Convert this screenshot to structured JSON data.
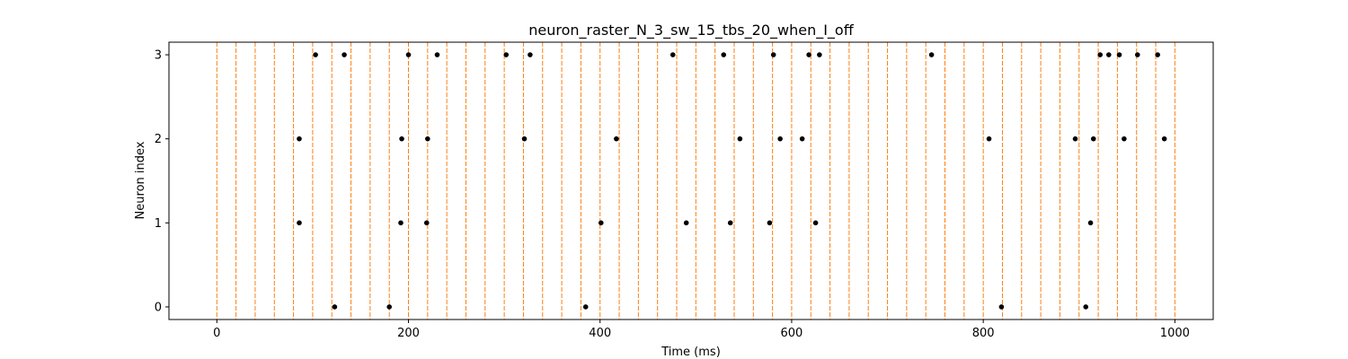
{
  "chart_data": {
    "type": "scatter",
    "title": "neuron_raster_N_3_sw_15_tbs_20_when_I_off",
    "xlabel": "Time (ms)",
    "ylabel": "Neuron index",
    "xlim": [
      -50,
      1040
    ],
    "ylim": [
      -0.15,
      3.15
    ],
    "x_ticks": [
      0,
      200,
      400,
      600,
      800,
      1000
    ],
    "x_tick_labels": [
      "0",
      "200",
      "400",
      "600",
      "800",
      "1000"
    ],
    "y_ticks": [
      0,
      1,
      2,
      3
    ],
    "y_tick_labels": [
      "0",
      "1",
      "2",
      "3"
    ],
    "grid": false,
    "legend": "none",
    "marker_color": "#000000",
    "time_bin_line_color": "#ff7f0e",
    "time_bin_lines": [
      0,
      20,
      40,
      60,
      80,
      100,
      120,
      140,
      160,
      180,
      200,
      220,
      240,
      260,
      280,
      300,
      320,
      340,
      360,
      380,
      400,
      420,
      440,
      460,
      480,
      500,
      520,
      540,
      560,
      580,
      600,
      620,
      640,
      660,
      680,
      700,
      720,
      740,
      760,
      780,
      800,
      820,
      840,
      860,
      880,
      900,
      920,
      940,
      960,
      980,
      1000
    ],
    "series": [
      {
        "neuron": 0,
        "x": [
          123,
          180,
          385,
          819,
          907
        ]
      },
      {
        "neuron": 1,
        "x": [
          86,
          192,
          219,
          401,
          490,
          536,
          577,
          625,
          912
        ]
      },
      {
        "neuron": 2,
        "x": [
          86,
          193,
          220,
          321,
          417,
          546,
          588,
          611,
          806,
          896,
          915,
          947,
          989
        ]
      },
      {
        "neuron": 3,
        "x": [
          103,
          133,
          200,
          230,
          302,
          327,
          476,
          529,
          581,
          618,
          629,
          746,
          922,
          931,
          942,
          961,
          982
        ]
      }
    ]
  }
}
